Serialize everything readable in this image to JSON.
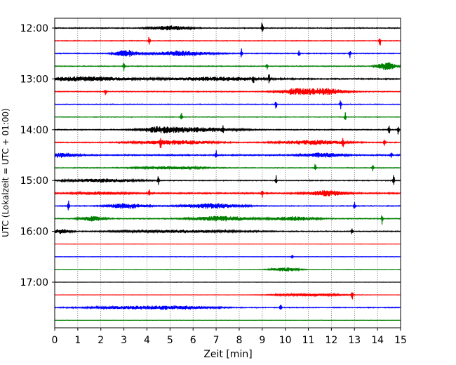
{
  "chart_data": {
    "type": "line",
    "title": "",
    "xlabel": "Zeit  [min]",
    "ylabel": "UTC (Lokalzeit = UTC + 01:00)",
    "xlim": [
      0,
      15
    ],
    "xticks": [
      0,
      1,
      2,
      3,
      4,
      5,
      6,
      7,
      8,
      9,
      10,
      11,
      12,
      13,
      14,
      15
    ],
    "ytick_labels": [
      "12:00",
      "13:00",
      "14:00",
      "15:00",
      "16:00",
      "17:00"
    ],
    "ytick_trace_index": [
      0,
      4,
      8,
      12,
      16,
      20
    ],
    "grid": "vertical dotted at each minute",
    "trace_colors": [
      "#000000",
      "#ff0000",
      "#0000ff",
      "#008000"
    ],
    "traces": [
      {
        "start_utc": "12:00",
        "color": "#000000",
        "level": 0.55,
        "events": [
          [
            9.0,
            1.3
          ]
        ],
        "bursts": [
          [
            5.0,
            0.8,
            0.5
          ]
        ]
      },
      {
        "start_utc": "12:15",
        "color": "#ff0000",
        "level": 0.45,
        "events": [
          [
            4.1,
            0.9
          ],
          [
            14.1,
            1.2
          ]
        ],
        "bursts": []
      },
      {
        "start_utc": "12:30",
        "color": "#0000ff",
        "level": 0.5,
        "events": [
          [
            8.1,
            0.9
          ],
          [
            10.6,
            0.7
          ],
          [
            12.8,
            0.8
          ]
        ],
        "bursts": [
          [
            3.1,
            0.5,
            0.8
          ],
          [
            5.5,
            1.2,
            0.6
          ]
        ]
      },
      {
        "start_utc": "12:45",
        "color": "#008000",
        "level": 0.5,
        "events": [
          [
            3.0,
            0.9
          ],
          [
            9.2,
            0.7
          ]
        ],
        "bursts": [
          [
            14.4,
            0.4,
            0.9
          ]
        ]
      },
      {
        "start_utc": "13:00",
        "color": "#000000",
        "level": 0.75,
        "events": [
          [
            8.6,
            1.3
          ],
          [
            9.3,
            1.0
          ]
        ],
        "bursts": [
          [
            1.2,
            2.0,
            0.5
          ],
          [
            7.0,
            2.0,
            0.4
          ]
        ]
      },
      {
        "start_utc": "13:15",
        "color": "#ff0000",
        "level": 0.55,
        "events": [
          [
            2.2,
            0.7
          ]
        ],
        "bursts": [
          [
            10.5,
            0.8,
            0.7
          ],
          [
            11.8,
            0.8,
            0.7
          ]
        ]
      },
      {
        "start_utc": "13:30",
        "color": "#0000ff",
        "level": 0.4,
        "events": [
          [
            9.6,
            1.1
          ],
          [
            12.4,
            0.8
          ]
        ],
        "bursts": []
      },
      {
        "start_utc": "13:45",
        "color": "#008000",
        "level": 0.4,
        "events": [
          [
            5.5,
            0.9
          ],
          [
            12.6,
            0.9
          ]
        ],
        "bursts": []
      },
      {
        "start_utc": "14:00",
        "color": "#000000",
        "level": 0.55,
        "events": [
          [
            7.3,
            1.1
          ],
          [
            14.5,
            1.0
          ],
          [
            14.9,
            0.9
          ]
        ],
        "bursts": [
          [
            4.6,
            0.9,
            0.6
          ],
          [
            6.3,
            1.6,
            0.5
          ]
        ]
      },
      {
        "start_utc": "14:15",
        "color": "#ff0000",
        "level": 0.55,
        "events": [
          [
            4.6,
            1.1
          ],
          [
            12.5,
            1.0
          ],
          [
            14.3,
            0.9
          ]
        ],
        "bursts": [
          [
            5.2,
            1.6,
            0.5
          ],
          [
            11.2,
            1.4,
            0.5
          ]
        ]
      },
      {
        "start_utc": "14:30",
        "color": "#0000ff",
        "level": 0.75,
        "events": [
          [
            7.0,
            0.8
          ],
          [
            14.6,
            0.8
          ]
        ],
        "bursts": [
          [
            0.3,
            0.6,
            0.5
          ],
          [
            11.6,
            0.8,
            0.5
          ]
        ]
      },
      {
        "start_utc": "14:45",
        "color": "#008000",
        "level": 0.45,
        "events": [
          [
            11.3,
            0.9
          ],
          [
            13.8,
            0.8
          ]
        ],
        "bursts": [
          [
            5.0,
            1.5,
            0.3
          ]
        ]
      },
      {
        "start_utc": "15:00",
        "color": "#000000",
        "level": 0.5,
        "events": [
          [
            4.5,
            1.0
          ],
          [
            9.6,
            0.9
          ],
          [
            14.7,
            1.0
          ]
        ],
        "bursts": [
          [
            2.0,
            1.5,
            0.4
          ]
        ]
      },
      {
        "start_utc": "15:15",
        "color": "#ff0000",
        "level": 0.8,
        "events": [
          [
            4.1,
            0.8
          ],
          [
            9.0,
            0.7
          ]
        ],
        "bursts": [
          [
            11.8,
            0.8,
            0.6
          ],
          [
            2.0,
            1.0,
            0.3
          ]
        ]
      },
      {
        "start_utc": "15:30",
        "color": "#0000ff",
        "level": 0.5,
        "events": [
          [
            0.6,
            0.9
          ],
          [
            13.0,
            0.7
          ]
        ],
        "bursts": [
          [
            3.1,
            0.8,
            0.6
          ],
          [
            6.8,
            1.2,
            0.6
          ]
        ]
      },
      {
        "start_utc": "15:45",
        "color": "#008000",
        "level": 0.55,
        "events": [
          [
            14.2,
            1.1
          ]
        ],
        "bursts": [
          [
            1.6,
            0.5,
            0.6
          ],
          [
            7.2,
            1.2,
            0.6
          ],
          [
            10.4,
            0.9,
            0.5
          ]
        ]
      },
      {
        "start_utc": "16:00",
        "color": "#000000",
        "level": 0.55,
        "events": [
          [
            12.9,
            0.8
          ]
        ],
        "bursts": [
          [
            0.3,
            0.4,
            0.5
          ],
          [
            5.5,
            2.5,
            0.3
          ]
        ]
      },
      {
        "start_utc": "16:15",
        "color": "#ff0000",
        "level": 0.18,
        "events": [],
        "bursts": []
      },
      {
        "start_utc": "16:30",
        "color": "#0000ff",
        "level": 0.25,
        "events": [
          [
            10.3,
            0.4
          ]
        ],
        "bursts": []
      },
      {
        "start_utc": "16:45",
        "color": "#008000",
        "level": 0.25,
        "events": [],
        "bursts": [
          [
            10.0,
            0.6,
            0.5
          ]
        ]
      },
      {
        "start_utc": "17:00",
        "color": "#000000",
        "level": 0.2,
        "events": [],
        "bursts": []
      },
      {
        "start_utc": "17:15",
        "color": "#ff0000",
        "level": 0.2,
        "events": [
          [
            12.9,
            0.9
          ]
        ],
        "bursts": [
          [
            11.0,
            1.5,
            0.3
          ]
        ]
      },
      {
        "start_utc": "17:30",
        "color": "#0000ff",
        "level": 0.5,
        "events": [
          [
            9.8,
            0.6
          ]
        ],
        "bursts": [
          [
            3.5,
            2.0,
            0.3
          ],
          [
            5.5,
            1.5,
            0.3
          ]
        ]
      },
      {
        "start_utc": "17:45",
        "color": "#008000",
        "level": 0.2,
        "events": [],
        "bursts": []
      }
    ]
  }
}
